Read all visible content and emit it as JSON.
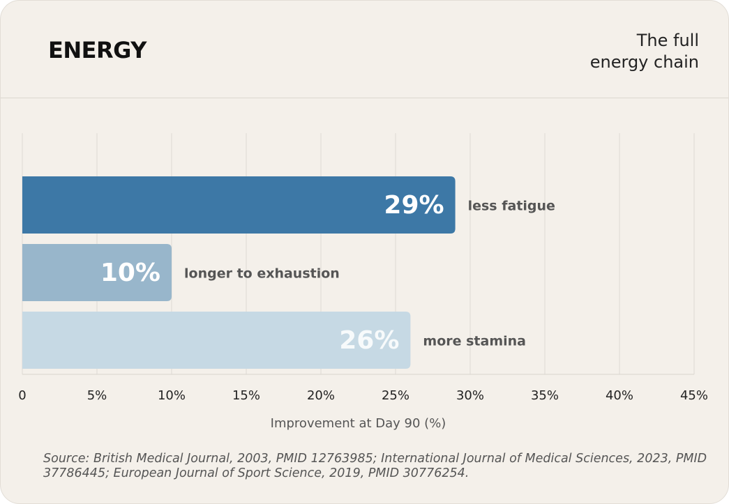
{
  "chart_data": {
    "type": "bar",
    "orientation": "horizontal",
    "title": "ENERGY",
    "subtitle": "The full energy chain",
    "categories": [
      "less fatigue",
      "longer to exhaustion",
      "more stamina"
    ],
    "values": [
      29,
      10,
      26
    ],
    "value_labels": [
      "29%",
      "10%",
      "26%"
    ],
    "colors": [
      "#3d78a6",
      "#98b6cb",
      "#c6d9e4"
    ],
    "xlim": [
      0,
      45
    ],
    "xticks": [
      0,
      {
        "value": 5,
        "label": "5%"
      },
      {
        "value": 10,
        "label": "10%"
      },
      {
        "value": 15,
        "label": "15%"
      },
      {
        "value": 20,
        "label": "20%"
      },
      {
        "value": 25,
        "label": "25%"
      },
      {
        "value": 30,
        "label": "30%"
      },
      {
        "value": 35,
        "label": "35%"
      },
      {
        "value": 40,
        "label": "40%"
      },
      {
        "value": 45,
        "label": "45%"
      }
    ],
    "xlabel": "Improvement at Day 90 (%)",
    "grid": true,
    "source": "Source: British Medical Journal, 2003, PMID 12763985; International Journal of Medical Sciences, 2023, PMID 37786445; European Journal of Sport Science, 2019, PMID 30776254."
  }
}
